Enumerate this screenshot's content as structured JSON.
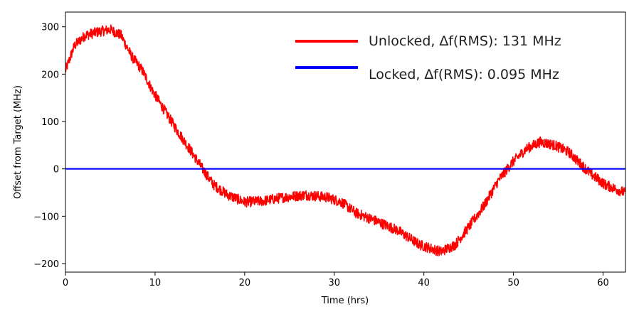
{
  "chart_data": {
    "type": "line",
    "title": "",
    "xlabel": "Time (hrs)",
    "ylabel": "Offset from Target (MHz)",
    "xlim": [
      0,
      62.5
    ],
    "ylim": [
      -218,
      331
    ],
    "xticks": [
      0,
      10,
      20,
      30,
      40,
      50,
      60
    ],
    "yticks": [
      -200,
      -100,
      0,
      100,
      200,
      300
    ],
    "ytick_labels": [
      "−200",
      "−100",
      "0",
      "100",
      "200",
      "300"
    ],
    "grid": false,
    "legend_position": "top-right",
    "series": [
      {
        "name": "Unlocked, ∆f(RMS): 131 MHz",
        "color": "#ff0000",
        "noisy": true,
        "x": [
          0,
          1,
          2.2,
          3.8,
          5,
          6.2,
          7.4,
          8.6,
          9.8,
          11,
          12.5,
          14.1,
          15.3,
          16.5,
          18.1,
          20,
          22,
          24.4,
          26.8,
          29.2,
          30.8,
          32.4,
          34.8,
          37.1,
          39.5,
          41.9,
          43.5,
          45,
          46.7,
          48.3,
          49.8,
          51.4,
          53,
          54.6,
          56.2,
          57.4,
          58.6,
          60.2,
          62.5
        ],
        "y": [
          207,
          260,
          282,
          290,
          294,
          282,
          237,
          207,
          162,
          125,
          80,
          35,
          0,
          -33,
          -55,
          -70,
          -68,
          -60,
          -55,
          -60,
          -70,
          -93,
          -111,
          -130,
          -160,
          -175,
          -160,
          -123,
          -78,
          -25,
          12,
          42,
          57,
          50,
          35,
          12,
          -10,
          -33,
          -51
        ]
      },
      {
        "name": "Locked, ∆f(RMS): 0.095 MHz",
        "color": "#0000ff",
        "noisy": false,
        "x": [
          0,
          62.5
        ],
        "y": [
          0,
          0
        ]
      }
    ]
  }
}
